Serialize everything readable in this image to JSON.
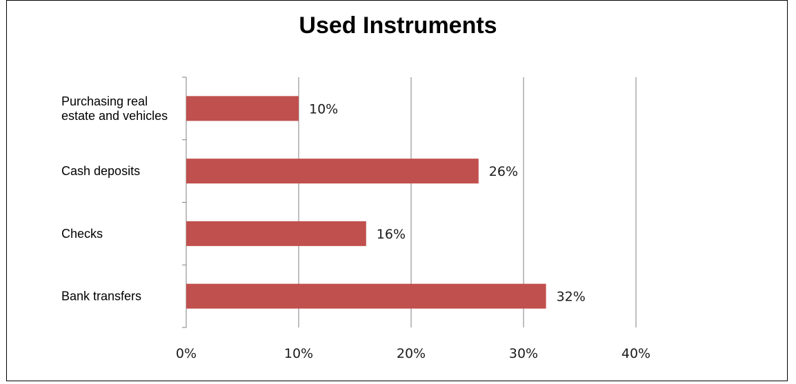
{
  "chart_data": {
    "type": "bar",
    "orientation": "horizontal",
    "title": "Used Instruments",
    "categories": [
      [
        "Purchasing real",
        "estate and vehicles"
      ],
      [
        "Cash deposits"
      ],
      [
        "Checks"
      ],
      [
        "Bank transfers"
      ]
    ],
    "values": [
      10,
      26,
      16,
      32
    ],
    "data_labels": [
      "10%",
      "26%",
      "16%",
      "32%"
    ],
    "xlim": [
      0,
      40
    ],
    "x_ticks": [
      0,
      10,
      20,
      30,
      40
    ],
    "x_tick_labels": [
      "0%",
      "10%",
      "20%",
      "30%",
      "40%"
    ],
    "grid": true,
    "legend": "none",
    "colors": {
      "bar": "#c0504d",
      "grid": "#7f7f7f"
    }
  }
}
